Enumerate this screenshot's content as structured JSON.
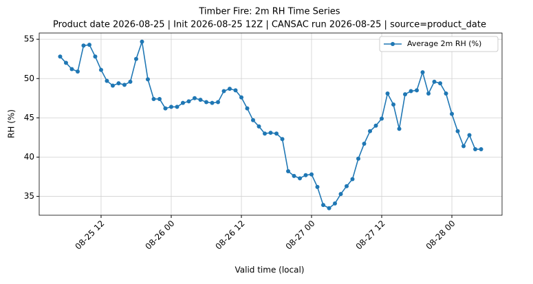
{
  "chart_data": {
    "type": "line",
    "title": "Timber Fire: 2m RH Time Series",
    "subtitle": "Product date 2026-08-25 | Init 2026-08-25 12Z | CANSAC run 2026-08-25 | source=product_date",
    "x_label": "Valid time (local)",
    "y_label": "RH (%)",
    "x": [
      "08-25 05",
      "08-25 06",
      "08-25 07",
      "08-25 08",
      "08-25 09",
      "08-25 10",
      "08-25 11",
      "08-25 12",
      "08-25 13",
      "08-25 14",
      "08-25 15",
      "08-25 16",
      "08-25 17",
      "08-25 18",
      "08-25 19",
      "08-25 20",
      "08-25 21",
      "08-25 22",
      "08-25 23",
      "08-26 00",
      "08-26 01",
      "08-26 02",
      "08-26 03",
      "08-26 04",
      "08-26 05",
      "08-26 06",
      "08-26 07",
      "08-26 08",
      "08-26 09",
      "08-26 10",
      "08-26 11",
      "08-26 12",
      "08-26 13",
      "08-26 14",
      "08-26 15",
      "08-26 16",
      "08-26 17",
      "08-26 18",
      "08-26 19",
      "08-26 20",
      "08-26 21",
      "08-26 22",
      "08-26 23",
      "08-27 00",
      "08-27 01",
      "08-27 02",
      "08-27 03",
      "08-27 04",
      "08-27 05",
      "08-27 06",
      "08-27 07",
      "08-27 08",
      "08-27 09",
      "08-27 10",
      "08-27 11",
      "08-27 12",
      "08-27 13",
      "08-27 14",
      "08-27 15",
      "08-27 16",
      "08-27 17",
      "08-27 18",
      "08-27 19",
      "08-27 20",
      "08-27 21",
      "08-27 22",
      "08-27 23",
      "08-28 00",
      "08-28 01",
      "08-28 02",
      "08-28 03",
      "08-28 04",
      "08-28 05"
    ],
    "series": [
      {
        "name": "Average 2m RH (%)",
        "color": "#1f77b4",
        "values": [
          52.8,
          52.0,
          51.2,
          50.9,
          54.2,
          54.3,
          52.8,
          51.1,
          49.7,
          49.1,
          49.4,
          49.2,
          49.6,
          52.5,
          54.7,
          49.9,
          47.4,
          47.4,
          46.2,
          46.4,
          46.4,
          46.9,
          47.1,
          47.5,
          47.3,
          47.0,
          46.9,
          47.0,
          48.4,
          48.7,
          48.5,
          47.6,
          46.2,
          44.7,
          43.9,
          43.0,
          43.1,
          43.0,
          42.3,
          38.2,
          37.6,
          37.3,
          37.7,
          37.8,
          36.2,
          33.9,
          33.5,
          34.1,
          35.3,
          36.3,
          37.2,
          39.8,
          41.7,
          43.3,
          44.0,
          44.9,
          48.1,
          46.7,
          43.6,
          48.0,
          48.4,
          48.5,
          50.8,
          48.1,
          49.6,
          49.4,
          48.1,
          45.5,
          43.3,
          41.4,
          42.8,
          41.0,
          41.0
        ]
      }
    ],
    "xlim": [
      "08-25 01:25",
      "08-28 08:35"
    ],
    "xticks": [
      "08-25 12",
      "08-26 00",
      "08-26 12",
      "08-27 00",
      "08-27 12",
      "08-28 00"
    ],
    "ylim": [
      32.6,
      55.8
    ],
    "yticks": [
      35,
      40,
      45,
      50,
      55
    ],
    "grid": true,
    "legend": "upper right"
  }
}
